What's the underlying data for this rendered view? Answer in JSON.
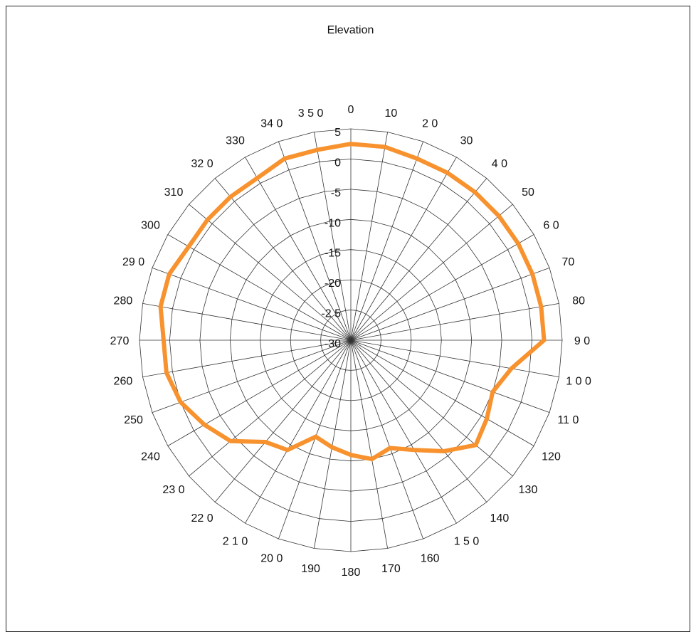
{
  "chart_data": {
    "type": "line",
    "subtype": "polar-radar",
    "title": "Elevation",
    "grid": true,
    "legend": "none",
    "angle_labels": [
      "0",
      "10",
      "2 0",
      "30",
      "4 0",
      "50",
      "6 0",
      "70",
      "80",
      "9 0",
      "1 0 0",
      "11 0",
      "120",
      "130",
      "140",
      "1 5 0",
      "160",
      "170",
      "180",
      "190",
      "20 0",
      "2 1 0",
      "22 0",
      "23 0",
      "240",
      "250",
      "260",
      "270",
      "280",
      "29 0",
      "300",
      "310",
      "32 0",
      "330",
      "34 0",
      "3 5 0"
    ],
    "radial_labels": [
      "5",
      "0",
      "-5",
      "-10",
      "-15",
      "-20",
      "-2 5",
      "-30"
    ],
    "rlim": [
      -30,
      5
    ],
    "angles": [
      0,
      10,
      20,
      30,
      40,
      50,
      60,
      70,
      80,
      90,
      100,
      110,
      120,
      130,
      140,
      150,
      160,
      170,
      180,
      190,
      200,
      210,
      220,
      230,
      240,
      250,
      260,
      270,
      280,
      290,
      300,
      310,
      320,
      330,
      340,
      350
    ],
    "series": [
      {
        "color": "#F7922E",
        "values": [
          2.5,
          2.5,
          2,
          2,
          2,
          2,
          2,
          2,
          2,
          2,
          -3,
          -5,
          -4,
          -3,
          -6,
          -9,
          -11,
          -10,
          -11,
          -12,
          -13,
          -9,
          -8,
          -4,
          -2,
          0,
          1,
          1,
          2,
          2,
          1,
          1,
          1,
          1,
          2,
          2
        ]
      }
    ],
    "colors": {
      "grid": "#333333",
      "series": "#F7922E"
    }
  }
}
